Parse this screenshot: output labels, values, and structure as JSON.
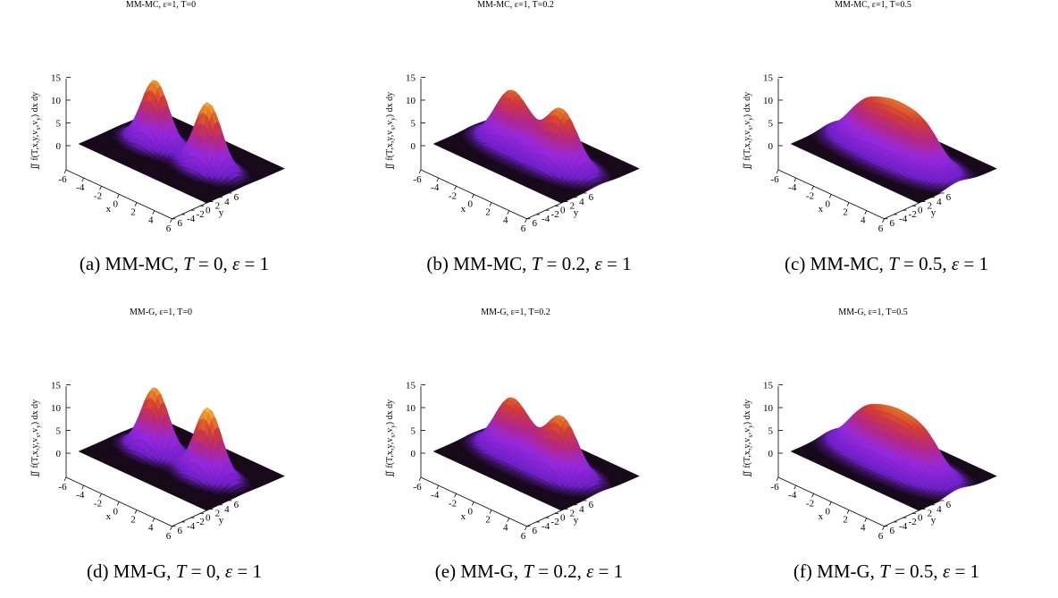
{
  "colors": {
    "peak": "#e8a23a",
    "mid": "#b52a5e",
    "base": "#1a0a20",
    "violet": "#8a2be2"
  },
  "chart_data": [
    {
      "type": "surface3d",
      "title": "MM-MC, ε=1, T=0",
      "caption": {
        "label": "(a)",
        "method": "MM-MC",
        "T": "0",
        "eps": "1"
      },
      "xlabel": "x",
      "ylabel": "y",
      "zlabel": "∬ f(T,x,y,v",
      "zlabel_sub1": "x",
      "zlabel_mid": ",v",
      "zlabel_sub2": "y",
      "zlabel_end": ") dx dy",
      "xlim": [
        -6,
        6
      ],
      "ylim": [
        -6,
        6
      ],
      "zlim": [
        0,
        15
      ],
      "x_ticks": [
        "-6",
        "-4",
        "-2",
        "0",
        "2",
        "4",
        "6"
      ],
      "y_ticks": [
        "6",
        "-4",
        "-2",
        "0",
        "2",
        "4",
        "6"
      ],
      "z_ticks": [
        "0",
        "5",
        "10",
        "15"
      ],
      "peaks": [
        {
          "x": -2.5,
          "y": 0,
          "height": 14,
          "width": 1.1
        },
        {
          "x": 2.5,
          "y": 0,
          "height": 14.5,
          "width": 1.1
        }
      ]
    },
    {
      "type": "surface3d",
      "title": "MM-MC, ε=1, T=0.2",
      "caption": {
        "label": "(b)",
        "method": "MM-MC",
        "T": "0.2",
        "eps": "1"
      },
      "xlabel": "x",
      "ylabel": "y",
      "zlabel": "∬ f(T,x,y,v",
      "zlabel_sub1": "x",
      "zlabel_mid": ",v",
      "zlabel_sub2": "y",
      "zlabel_end": ") dx dy",
      "xlim": [
        -6,
        6
      ],
      "ylim": [
        -6,
        6
      ],
      "zlim": [
        0,
        15
      ],
      "x_ticks": [
        "-6",
        "-4",
        "-2",
        "0",
        "2",
        "4",
        "6"
      ],
      "y_ticks": [
        "6",
        "-4",
        "-2",
        "0",
        "2",
        "4",
        "6"
      ],
      "z_ticks": [
        "0",
        "5",
        "10",
        "15"
      ],
      "peaks": [
        {
          "x": -2.5,
          "y": 0,
          "height": 10.5,
          "width": 1.3
        },
        {
          "x": 2.5,
          "y": 0,
          "height": 11.5,
          "width": 1.3
        },
        {
          "x": 0,
          "y": 0,
          "height": 4.5,
          "width": 1.6
        }
      ]
    },
    {
      "type": "surface3d",
      "title": "MM-MC, ε=1, T=0.5",
      "caption": {
        "label": "(c)",
        "method": "MM-MC",
        "T": "0.5",
        "eps": "1"
      },
      "xlabel": "x",
      "ylabel": "y",
      "zlabel": "∬ f(T,x,y,v",
      "zlabel_sub1": "x",
      "zlabel_mid": ",v",
      "zlabel_sub2": "y",
      "zlabel_end": ") dx dy",
      "xlim": [
        -6,
        6
      ],
      "ylim": [
        -6,
        6
      ],
      "zlim": [
        0,
        15
      ],
      "x_ticks": [
        "-6",
        "-4",
        "-2",
        "0",
        "2",
        "4",
        "6"
      ],
      "y_ticks": [
        "6",
        "-4",
        "-2",
        "0",
        "2",
        "4",
        "6"
      ],
      "z_ticks": [
        "0",
        "5",
        "10",
        "15"
      ],
      "peaks": [
        {
          "x": -2.8,
          "y": 0,
          "height": 7.5,
          "width": 1.5
        },
        {
          "x": 2.8,
          "y": 0,
          "height": 8.5,
          "width": 1.5
        },
        {
          "x": 0,
          "y": 0,
          "height": 9.5,
          "width": 1.6
        }
      ]
    },
    {
      "type": "surface3d",
      "title": "MM-G, ε=1, T=0",
      "caption": {
        "label": "(d)",
        "method": "MM-G",
        "T": "0",
        "eps": "1"
      },
      "xlabel": "x",
      "ylabel": "y",
      "zlabel": "∬ f(T,x,y,v",
      "zlabel_sub1": "x",
      "zlabel_mid": ",v",
      "zlabel_sub2": "y",
      "zlabel_end": ") dx dy",
      "xlim": [
        -6,
        6
      ],
      "ylim": [
        -6,
        6
      ],
      "zlim": [
        0,
        15
      ],
      "x_ticks": [
        "-6",
        "-4",
        "-2",
        "0",
        "2",
        "4",
        "6"
      ],
      "y_ticks": [
        "6",
        "-4",
        "-2",
        "0",
        "2",
        "4",
        "6"
      ],
      "z_ticks": [
        "0",
        "5",
        "10",
        "15"
      ],
      "peaks": [
        {
          "x": -2.5,
          "y": 0,
          "height": 14,
          "width": 1.1
        },
        {
          "x": 2.5,
          "y": 0,
          "height": 15,
          "width": 1.1
        }
      ]
    },
    {
      "type": "surface3d",
      "title": "MM-G, ε=1, T=0.2",
      "caption": {
        "label": "(e)",
        "method": "MM-G",
        "T": "0.2",
        "eps": "1"
      },
      "xlabel": "x",
      "ylabel": "y",
      "zlabel": "∬ f(T,x,y,v",
      "zlabel_sub1": "x",
      "zlabel_mid": ",v",
      "zlabel_sub2": "y",
      "zlabel_end": ") dx dy",
      "xlim": [
        -6,
        6
      ],
      "ylim": [
        -6,
        6
      ],
      "zlim": [
        0,
        15
      ],
      "x_ticks": [
        "-6",
        "-4",
        "-2",
        "0",
        "2",
        "4",
        "6"
      ],
      "y_ticks": [
        "6",
        "-4",
        "-2",
        "0",
        "2",
        "4",
        "6"
      ],
      "z_ticks": [
        "0",
        "5",
        "10",
        "15"
      ],
      "peaks": [
        {
          "x": -2.5,
          "y": 0,
          "height": 10.5,
          "width": 1.3
        },
        {
          "x": 2.5,
          "y": 0,
          "height": 11.5,
          "width": 1.3
        },
        {
          "x": 0,
          "y": 0,
          "height": 4.5,
          "width": 1.6
        }
      ]
    },
    {
      "type": "surface3d",
      "title": "MM-G, ε=1, T=0.5",
      "caption": {
        "label": "(f)",
        "method": "MM-G",
        "T": "0.5",
        "eps": "1"
      },
      "xlabel": "x",
      "ylabel": "y",
      "zlabel": "∬ f(T,x,y,v",
      "zlabel_sub1": "x",
      "zlabel_mid": ",v",
      "zlabel_sub2": "y",
      "zlabel_end": ") dx dy",
      "xlim": [
        -6,
        6
      ],
      "ylim": [
        -6,
        6
      ],
      "zlim": [
        0,
        15
      ],
      "x_ticks": [
        "-6",
        "-4",
        "-2",
        "0",
        "2",
        "4",
        "6"
      ],
      "y_ticks": [
        "6",
        "-4",
        "-2",
        "0",
        "2",
        "4",
        "6"
      ],
      "z_ticks": [
        "0",
        "5",
        "10",
        "15"
      ],
      "peaks": [
        {
          "x": -2.8,
          "y": 0,
          "height": 7.5,
          "width": 1.5
        },
        {
          "x": 2.8,
          "y": 0,
          "height": 8.5,
          "width": 1.5
        },
        {
          "x": 0,
          "y": 0,
          "height": 9.5,
          "width": 1.6
        }
      ]
    }
  ]
}
